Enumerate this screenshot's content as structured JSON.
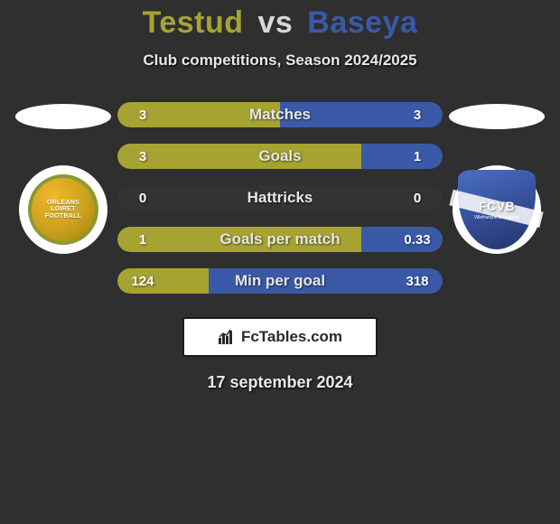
{
  "title": {
    "left": "Testud",
    "vs": "vs",
    "right": "Baseya"
  },
  "subtitle": "Club competitions, Season 2024/2025",
  "colors": {
    "left": "#a6a333",
    "right": "#3a5aa8",
    "background": "#2f2f2f",
    "text": "#e8e8e8"
  },
  "crest_left": {
    "line1": "ORLEANS",
    "line2": "LOIRET",
    "line3": "FOOTBALL"
  },
  "crest_right": {
    "main": "FCVB",
    "sub": "Villefranche Beaujolais"
  },
  "rows": [
    {
      "label": "Matches",
      "left": "3",
      "right": "3",
      "leftPct": 50,
      "rightPct": 50
    },
    {
      "label": "Goals",
      "left": "3",
      "right": "1",
      "leftPct": 75,
      "rightPct": 25
    },
    {
      "label": "Hattricks",
      "left": "0",
      "right": "0",
      "leftPct": 0,
      "rightPct": 0
    },
    {
      "label": "Goals per match",
      "left": "1",
      "right": "0.33",
      "leftPct": 75,
      "rightPct": 25
    },
    {
      "label": "Min per goal",
      "left": "124",
      "right": "318",
      "leftPct": 28,
      "rightPct": 72
    }
  ],
  "brand": "FcTables.com",
  "date": "17 september 2024"
}
